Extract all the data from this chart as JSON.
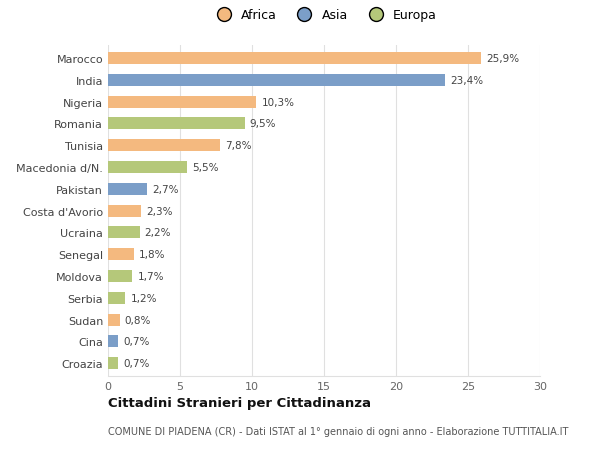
{
  "countries": [
    "Marocco",
    "India",
    "Nigeria",
    "Romania",
    "Tunisia",
    "Macedonia d/N.",
    "Pakistan",
    "Costa d'Avorio",
    "Ucraina",
    "Senegal",
    "Moldova",
    "Serbia",
    "Sudan",
    "Cina",
    "Croazia"
  ],
  "values": [
    25.9,
    23.4,
    10.3,
    9.5,
    7.8,
    5.5,
    2.7,
    2.3,
    2.2,
    1.8,
    1.7,
    1.2,
    0.8,
    0.7,
    0.7
  ],
  "labels": [
    "25,9%",
    "23,4%",
    "10,3%",
    "9,5%",
    "7,8%",
    "5,5%",
    "2,7%",
    "2,3%",
    "2,2%",
    "1,8%",
    "1,7%",
    "1,2%",
    "0,8%",
    "0,7%",
    "0,7%"
  ],
  "continents": [
    "Africa",
    "Asia",
    "Africa",
    "Europa",
    "Africa",
    "Europa",
    "Asia",
    "Africa",
    "Europa",
    "Africa",
    "Europa",
    "Europa",
    "Africa",
    "Asia",
    "Europa"
  ],
  "colors": {
    "Africa": "#F4B97F",
    "Asia": "#7B9EC8",
    "Europa": "#B5C87A"
  },
  "legend_labels": [
    "Africa",
    "Asia",
    "Europa"
  ],
  "title": "Cittadini Stranieri per Cittadinanza",
  "subtitle": "COMUNE DI PIADENA (CR) - Dati ISTAT al 1° gennaio di ogni anno - Elaborazione TUTTITALIA.IT",
  "xlim": [
    0,
    30
  ],
  "xticks": [
    0,
    5,
    10,
    15,
    20,
    25,
    30
  ],
  "background_color": "#ffffff",
  "grid_color": "#e0e0e0",
  "bar_height": 0.55,
  "figsize": [
    6.0,
    4.6
  ],
  "dpi": 100
}
